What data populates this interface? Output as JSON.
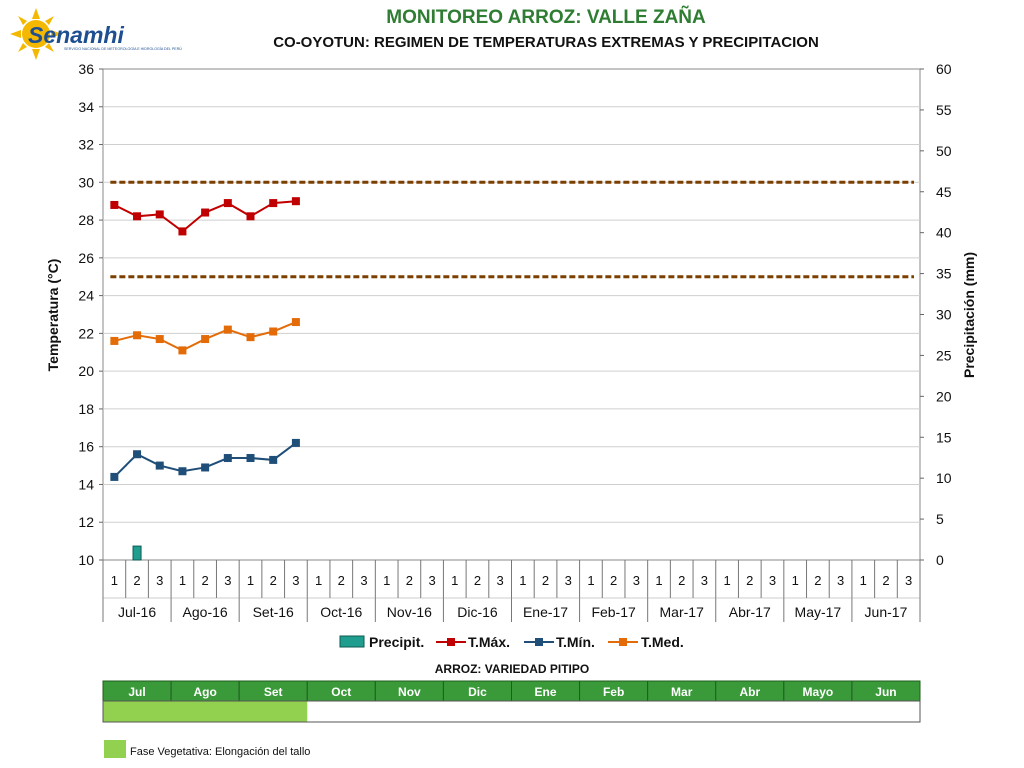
{
  "logo": {
    "text": "Senamhi",
    "subtitle": "SERVICIO NACIONAL DE METEOROLOGÍA E HIDROLOGÍA DEL PERÚ"
  },
  "colors": {
    "title": "#2e7d32",
    "tmax": "#c00000",
    "tmin": "#1f4e79",
    "tmed": "#e36c09",
    "precip": "#1f9e8f",
    "threshold": "#7b3f00",
    "stage_header": "#3a9a3a",
    "stage_fill": "#92d050"
  },
  "chart_data": {
    "type": "line",
    "title": "MONITOREO ARROZ: VALLE ZAÑA",
    "subtitle": "CO-OYOTUN: REGIMEN DE TEMPERATURAS EXTREMAS Y PRECIPITACION",
    "ylabel": "Temperatura (°C)",
    "y2label": "Precipitación (mm)",
    "ylim": [
      10,
      36
    ],
    "y_ticks": [
      "10",
      "12",
      "14",
      "16",
      "18",
      "20",
      "22",
      "24",
      "26",
      "28",
      "30",
      "32",
      "34",
      "36"
    ],
    "y2lim": [
      0,
      60
    ],
    "y2_ticks": [
      "0",
      "5",
      "10",
      "15",
      "20",
      "25",
      "30",
      "35",
      "40",
      "45",
      "50",
      "55",
      "60"
    ],
    "decades": [
      "1",
      "2",
      "3"
    ],
    "months": [
      "Jul-16",
      "Ago-16",
      "Set-16",
      "Oct-16",
      "Nov-16",
      "Dic-16",
      "Ene-17",
      "Feb-17",
      "Mar-17",
      "Abr-17",
      "May-17",
      "Jun-17"
    ],
    "grid": true,
    "legend_position": "bottom",
    "thresholds": [
      30,
      25
    ],
    "series": [
      {
        "name": "Precipit.",
        "kind": "bar",
        "axis": "right",
        "values": [
          0,
          1.7,
          0,
          0,
          0,
          0,
          0,
          0,
          0
        ]
      },
      {
        "name": "T.Máx.",
        "kind": "line",
        "values": [
          28.8,
          28.2,
          28.3,
          27.4,
          28.4,
          28.9,
          28.2,
          28.9,
          29.0
        ]
      },
      {
        "name": "T.Mín.",
        "kind": "line",
        "values": [
          14.4,
          15.6,
          15.0,
          14.7,
          14.9,
          15.4,
          15.4,
          15.3,
          16.2
        ]
      },
      {
        "name": "T.Med.",
        "kind": "line",
        "values": [
          21.6,
          21.9,
          21.7,
          21.1,
          21.7,
          22.2,
          21.8,
          22.1,
          22.6
        ]
      }
    ]
  },
  "phenology": {
    "title": "ARROZ: VARIEDAD PITIPO",
    "months": [
      "Jul",
      "Ago",
      "Set",
      "Oct",
      "Nov",
      "Dic",
      "Ene",
      "Feb",
      "Mar",
      "Abr",
      "Mayo",
      "Jun"
    ],
    "stage_months_filled": 3,
    "legend": "Fase Vegetativa: Elongación del tallo"
  }
}
